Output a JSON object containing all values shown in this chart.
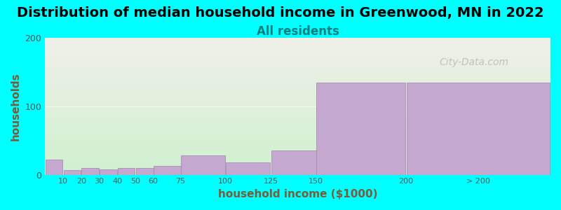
{
  "title": "Distribution of median household income in Greenwood, MN in 2022",
  "subtitle": "All residents",
  "xlabel": "household income ($1000)",
  "ylabel": "households",
  "background_color": "#00FFFF",
  "plot_bg_gradient_top": "#f0f0e8",
  "plot_bg_gradient_bottom": "#d0f0d0",
  "bar_color": "#c4a8d0",
  "bar_edge_color": "#a080b0",
  "watermark": "City-Data.com",
  "ylim": [
    0,
    200
  ],
  "yticks": [
    0,
    100,
    200
  ],
  "categories": [
    "10",
    "20",
    "30",
    "40",
    "50",
    "60",
    "75",
    "100",
    "125",
    "150",
    "200",
    "> 200"
  ],
  "bar_heights": [
    22,
    7,
    10,
    8,
    10,
    10,
    13,
    28,
    18,
    35,
    135,
    135
  ],
  "bar_widths": [
    10,
    10,
    10,
    10,
    10,
    15,
    25,
    25,
    25,
    50,
    50,
    80
  ],
  "bar_lefts": [
    0,
    10,
    20,
    30,
    40,
    50,
    60,
    75,
    100,
    125,
    150,
    200
  ],
  "title_fontsize": 14,
  "subtitle_fontsize": 12,
  "axis_label_fontsize": 11
}
